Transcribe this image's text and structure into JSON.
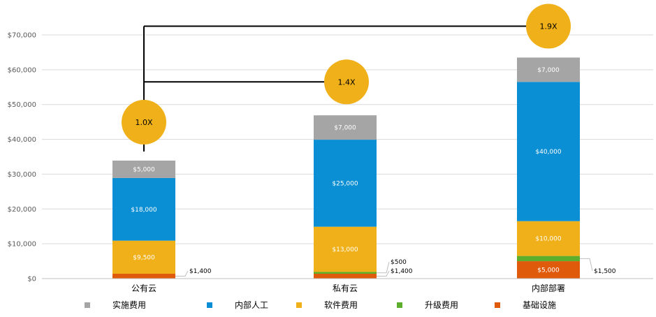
{
  "chart_data": {
    "type": "bar",
    "stacked": true,
    "categories": [
      "公有云",
      "私有云",
      "内部部署"
    ],
    "series": [
      {
        "name": "基础设施",
        "color": "#E05A0C",
        "values": [
          1400,
          1400,
          5000
        ]
      },
      {
        "name": "升级费用",
        "color": "#5DAE2C",
        "values": [
          0,
          500,
          1500
        ]
      },
      {
        "name": "软件费用",
        "color": "#F0B019",
        "values": [
          9500,
          13000,
          10000
        ]
      },
      {
        "name": "内部人工",
        "color": "#0A8FD4",
        "values": [
          18000,
          25000,
          40000
        ]
      },
      {
        "name": "实施费用",
        "color": "#A5A5A5",
        "values": [
          5000,
          7000,
          7000
        ]
      }
    ],
    "legend_order": [
      "实施费用",
      "内部人工",
      "软件费用",
      "升级费用",
      "基础设施"
    ],
    "legend_position": "bottom",
    "segment_labels": [
      {
        "category": 0,
        "series": "实施费用",
        "text": "$5,000",
        "placement": "inside"
      },
      {
        "category": 0,
        "series": "内部人工",
        "text": "$18,000",
        "placement": "inside"
      },
      {
        "category": 0,
        "series": "软件费用",
        "text": "$9,500",
        "placement": "inside"
      },
      {
        "category": 0,
        "series": "基础设施",
        "text": "$1,400",
        "placement": "outside"
      },
      {
        "category": 1,
        "series": "实施费用",
        "text": "$7,000",
        "placement": "inside"
      },
      {
        "category": 1,
        "series": "内部人工",
        "text": "$25,000",
        "placement": "inside"
      },
      {
        "category": 1,
        "series": "软件费用",
        "text": "$13,000",
        "placement": "inside"
      },
      {
        "category": 1,
        "series": "升级费用",
        "text": "$500",
        "placement": "outside"
      },
      {
        "category": 1,
        "series": "基础设施",
        "text": "$1,400",
        "placement": "outside"
      },
      {
        "category": 2,
        "series": "实施费用",
        "text": "$7,000",
        "placement": "inside"
      },
      {
        "category": 2,
        "series": "内部人工",
        "text": "$40,000",
        "placement": "inside"
      },
      {
        "category": 2,
        "series": "软件费用",
        "text": "$10,000",
        "placement": "inside"
      },
      {
        "category": 2,
        "series": "升级费用",
        "text": "$1,500",
        "placement": "outside"
      },
      {
        "category": 2,
        "series": "基础设施",
        "text": "$5,000",
        "placement": "inside"
      }
    ],
    "multipliers": [
      {
        "category": 0,
        "text": "1.0X"
      },
      {
        "category": 1,
        "text": "1.4X"
      },
      {
        "category": 2,
        "text": "1.9X"
      }
    ],
    "multiplier_color": "#F0B019",
    "connector_values": {
      "to_category_1": 56500,
      "to_category_2": 72500
    },
    "yticks": [
      0,
      10000,
      20000,
      30000,
      40000,
      50000,
      60000,
      70000
    ],
    "ytick_labels": [
      "$0",
      "$10,000",
      "$20,000",
      "$30,000",
      "$40,000",
      "$50,000",
      "$60,000",
      "$70,000"
    ],
    "ylim": [
      0,
      70000
    ],
    "grid": true,
    "title": "",
    "xlabel": "",
    "ylabel": ""
  }
}
